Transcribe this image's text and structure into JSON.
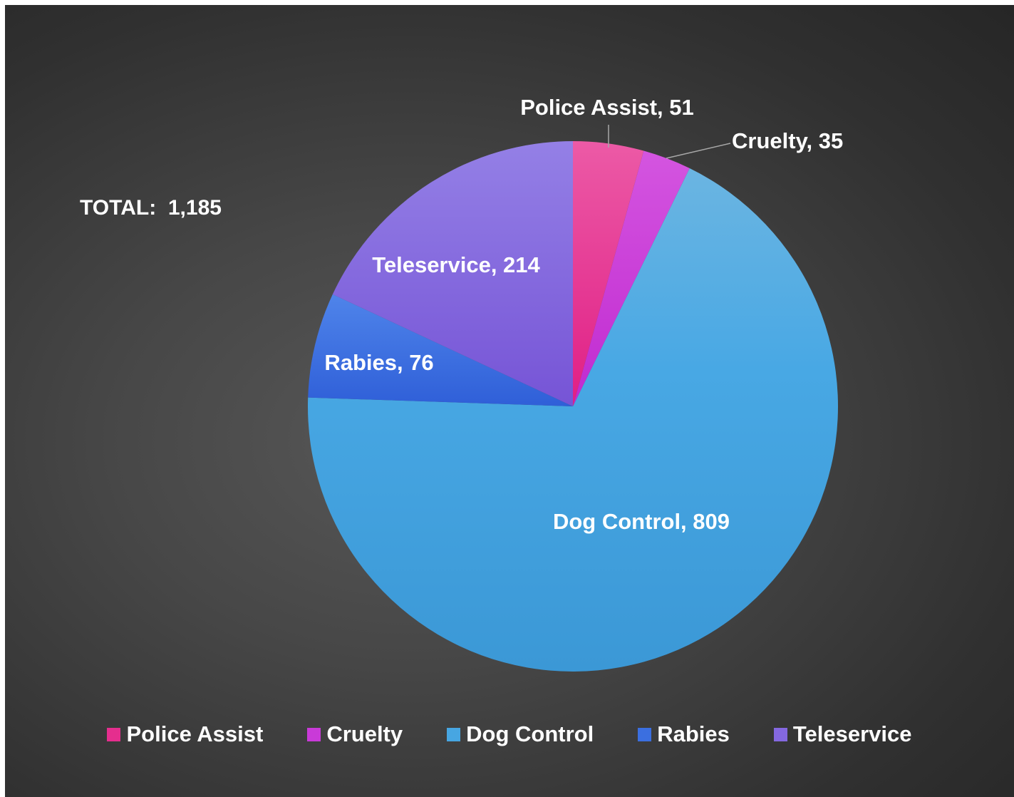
{
  "chart_data": {
    "type": "pie",
    "annotation": "TOTAL:  1,185",
    "categories": [
      "Police Assist",
      "Cruelty",
      "Dog Control",
      "Rabies",
      "Teleservice"
    ],
    "values": [
      51,
      35,
      809,
      76,
      214
    ],
    "data_labels": [
      "Police Assist, 51",
      "Cruelty, 35",
      "Dog Control, 809",
      "Rabies, 76",
      "Teleservice, 214"
    ],
    "colors": [
      "#e52e8e",
      "#c93ad8",
      "#47a6e2",
      "#3b6fe0",
      "#8468e0"
    ],
    "start_angle": "12 o'clock",
    "direction": "clockwise",
    "legend_position": "bottom"
  }
}
